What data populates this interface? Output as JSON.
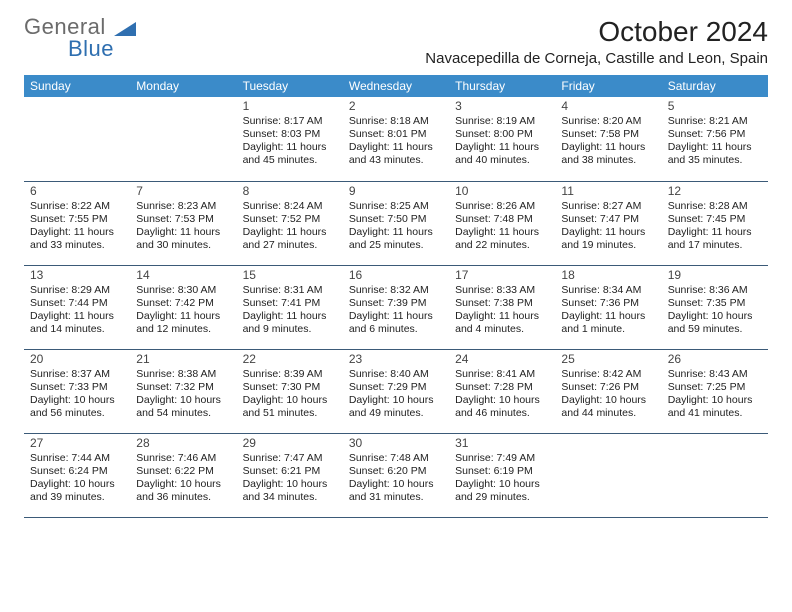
{
  "brand": {
    "part1": "General",
    "part2": "Blue",
    "triangle_color": "#2f6fb0"
  },
  "title": "October 2024",
  "location": "Navacepedilla de Corneja, Castille and Leon, Spain",
  "colors": {
    "header_bg": "#3b8bc9",
    "header_text": "#ffffff",
    "cell_border": "#3b5a78",
    "text": "#222222"
  },
  "weekdays": [
    "Sunday",
    "Monday",
    "Tuesday",
    "Wednesday",
    "Thursday",
    "Friday",
    "Saturday"
  ],
  "weeks": [
    [
      null,
      null,
      {
        "n": "1",
        "sr": "Sunrise: 8:17 AM",
        "ss": "Sunset: 8:03 PM",
        "dl": "Daylight: 11 hours and 45 minutes."
      },
      {
        "n": "2",
        "sr": "Sunrise: 8:18 AM",
        "ss": "Sunset: 8:01 PM",
        "dl": "Daylight: 11 hours and 43 minutes."
      },
      {
        "n": "3",
        "sr": "Sunrise: 8:19 AM",
        "ss": "Sunset: 8:00 PM",
        "dl": "Daylight: 11 hours and 40 minutes."
      },
      {
        "n": "4",
        "sr": "Sunrise: 8:20 AM",
        "ss": "Sunset: 7:58 PM",
        "dl": "Daylight: 11 hours and 38 minutes."
      },
      {
        "n": "5",
        "sr": "Sunrise: 8:21 AM",
        "ss": "Sunset: 7:56 PM",
        "dl": "Daylight: 11 hours and 35 minutes."
      }
    ],
    [
      {
        "n": "6",
        "sr": "Sunrise: 8:22 AM",
        "ss": "Sunset: 7:55 PM",
        "dl": "Daylight: 11 hours and 33 minutes."
      },
      {
        "n": "7",
        "sr": "Sunrise: 8:23 AM",
        "ss": "Sunset: 7:53 PM",
        "dl": "Daylight: 11 hours and 30 minutes."
      },
      {
        "n": "8",
        "sr": "Sunrise: 8:24 AM",
        "ss": "Sunset: 7:52 PM",
        "dl": "Daylight: 11 hours and 27 minutes."
      },
      {
        "n": "9",
        "sr": "Sunrise: 8:25 AM",
        "ss": "Sunset: 7:50 PM",
        "dl": "Daylight: 11 hours and 25 minutes."
      },
      {
        "n": "10",
        "sr": "Sunrise: 8:26 AM",
        "ss": "Sunset: 7:48 PM",
        "dl": "Daylight: 11 hours and 22 minutes."
      },
      {
        "n": "11",
        "sr": "Sunrise: 8:27 AM",
        "ss": "Sunset: 7:47 PM",
        "dl": "Daylight: 11 hours and 19 minutes."
      },
      {
        "n": "12",
        "sr": "Sunrise: 8:28 AM",
        "ss": "Sunset: 7:45 PM",
        "dl": "Daylight: 11 hours and 17 minutes."
      }
    ],
    [
      {
        "n": "13",
        "sr": "Sunrise: 8:29 AM",
        "ss": "Sunset: 7:44 PM",
        "dl": "Daylight: 11 hours and 14 minutes."
      },
      {
        "n": "14",
        "sr": "Sunrise: 8:30 AM",
        "ss": "Sunset: 7:42 PM",
        "dl": "Daylight: 11 hours and 12 minutes."
      },
      {
        "n": "15",
        "sr": "Sunrise: 8:31 AM",
        "ss": "Sunset: 7:41 PM",
        "dl": "Daylight: 11 hours and 9 minutes."
      },
      {
        "n": "16",
        "sr": "Sunrise: 8:32 AM",
        "ss": "Sunset: 7:39 PM",
        "dl": "Daylight: 11 hours and 6 minutes."
      },
      {
        "n": "17",
        "sr": "Sunrise: 8:33 AM",
        "ss": "Sunset: 7:38 PM",
        "dl": "Daylight: 11 hours and 4 minutes."
      },
      {
        "n": "18",
        "sr": "Sunrise: 8:34 AM",
        "ss": "Sunset: 7:36 PM",
        "dl": "Daylight: 11 hours and 1 minute."
      },
      {
        "n": "19",
        "sr": "Sunrise: 8:36 AM",
        "ss": "Sunset: 7:35 PM",
        "dl": "Daylight: 10 hours and 59 minutes."
      }
    ],
    [
      {
        "n": "20",
        "sr": "Sunrise: 8:37 AM",
        "ss": "Sunset: 7:33 PM",
        "dl": "Daylight: 10 hours and 56 minutes."
      },
      {
        "n": "21",
        "sr": "Sunrise: 8:38 AM",
        "ss": "Sunset: 7:32 PM",
        "dl": "Daylight: 10 hours and 54 minutes."
      },
      {
        "n": "22",
        "sr": "Sunrise: 8:39 AM",
        "ss": "Sunset: 7:30 PM",
        "dl": "Daylight: 10 hours and 51 minutes."
      },
      {
        "n": "23",
        "sr": "Sunrise: 8:40 AM",
        "ss": "Sunset: 7:29 PM",
        "dl": "Daylight: 10 hours and 49 minutes."
      },
      {
        "n": "24",
        "sr": "Sunrise: 8:41 AM",
        "ss": "Sunset: 7:28 PM",
        "dl": "Daylight: 10 hours and 46 minutes."
      },
      {
        "n": "25",
        "sr": "Sunrise: 8:42 AM",
        "ss": "Sunset: 7:26 PM",
        "dl": "Daylight: 10 hours and 44 minutes."
      },
      {
        "n": "26",
        "sr": "Sunrise: 8:43 AM",
        "ss": "Sunset: 7:25 PM",
        "dl": "Daylight: 10 hours and 41 minutes."
      }
    ],
    [
      {
        "n": "27",
        "sr": "Sunrise: 7:44 AM",
        "ss": "Sunset: 6:24 PM",
        "dl": "Daylight: 10 hours and 39 minutes."
      },
      {
        "n": "28",
        "sr": "Sunrise: 7:46 AM",
        "ss": "Sunset: 6:22 PM",
        "dl": "Daylight: 10 hours and 36 minutes."
      },
      {
        "n": "29",
        "sr": "Sunrise: 7:47 AM",
        "ss": "Sunset: 6:21 PM",
        "dl": "Daylight: 10 hours and 34 minutes."
      },
      {
        "n": "30",
        "sr": "Sunrise: 7:48 AM",
        "ss": "Sunset: 6:20 PM",
        "dl": "Daylight: 10 hours and 31 minutes."
      },
      {
        "n": "31",
        "sr": "Sunrise: 7:49 AM",
        "ss": "Sunset: 6:19 PM",
        "dl": "Daylight: 10 hours and 29 minutes."
      },
      null,
      null
    ]
  ]
}
